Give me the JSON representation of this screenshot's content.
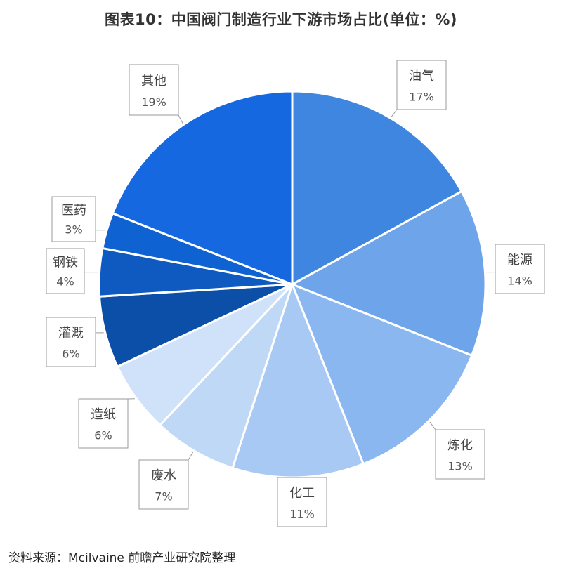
{
  "title": "图表10：中国阀门制造行业下游市场占比(单位：%)",
  "source": "资料来源：Mcilvaine 前瞻产业研究院整理",
  "chart_data": {
    "type": "pie",
    "title": "图表10：中国阀门制造行业下游市场占比(单位：%)",
    "unit": "%",
    "slices": [
      {
        "label": "油气",
        "value": 17,
        "display": "17%",
        "color": "#3f86e0"
      },
      {
        "label": "能源",
        "value": 14,
        "display": "14%",
        "color": "#6ea4ea"
      },
      {
        "label": "炼化",
        "value": 13,
        "display": "13%",
        "color": "#8ab7ef"
      },
      {
        "label": "化工",
        "value": 11,
        "display": "11%",
        "color": "#a7c9f3"
      },
      {
        "label": "废水",
        "value": 7,
        "display": "7%",
        "color": "#bfd8f6"
      },
      {
        "label": "造纸",
        "value": 6,
        "display": "6%",
        "color": "#cfe2f9"
      },
      {
        "label": "灌溉",
        "value": 6,
        "display": "6%",
        "color": "#0c4fa8"
      },
      {
        "label": "钢铁",
        "value": 4,
        "display": "4%",
        "color": "#0e5ac0"
      },
      {
        "label": "医药",
        "value": 3,
        "display": "3%",
        "color": "#0f62d1"
      },
      {
        "label": "其他",
        "value": 19,
        "display": "19%",
        "color": "#1668e0"
      }
    ],
    "legend": "none",
    "data_labels": "callout boxes with category and percentage"
  }
}
